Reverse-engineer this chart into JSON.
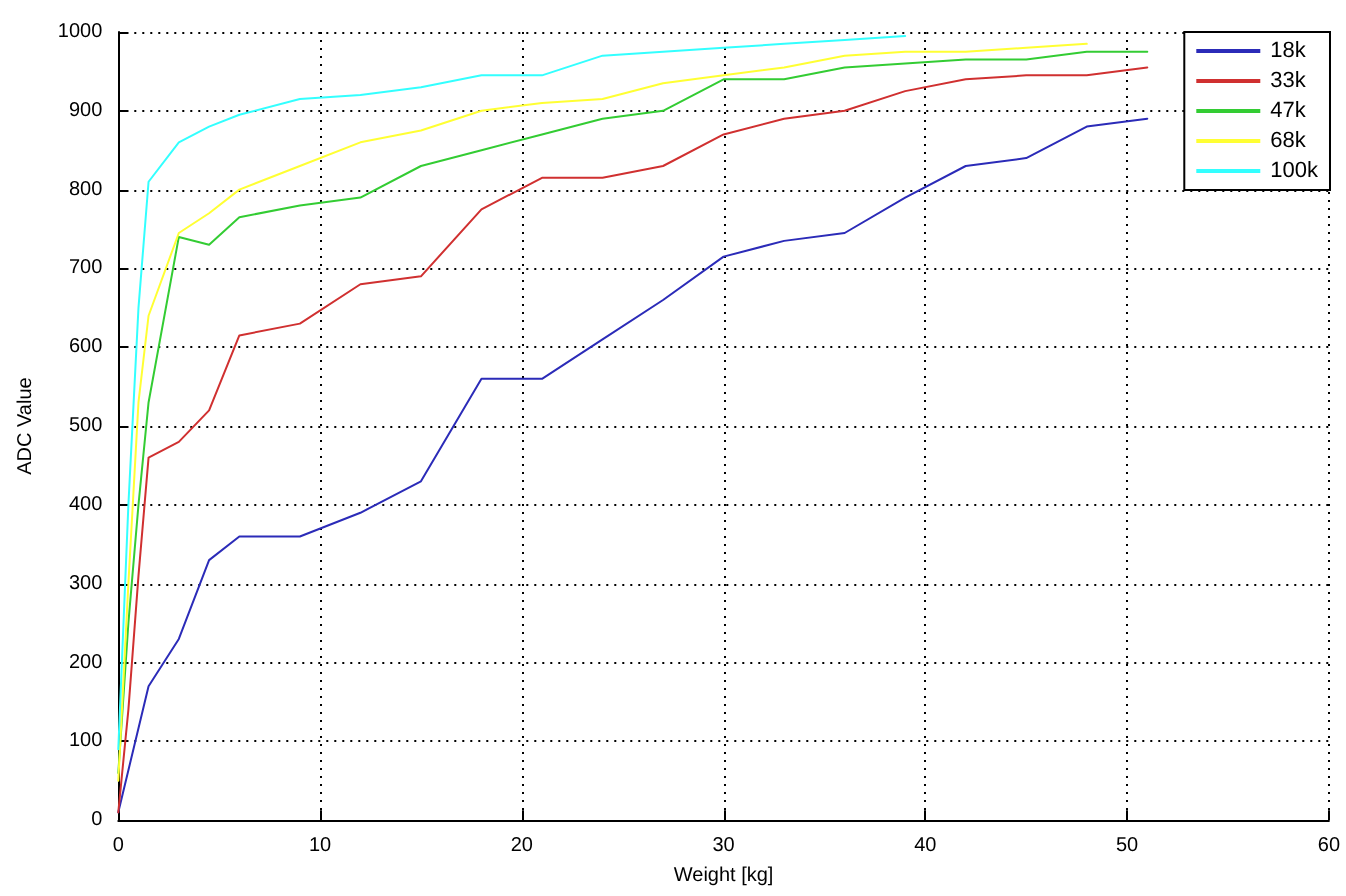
{
  "chart_data": {
    "type": "line",
    "xlabel": "Weight [kg]",
    "ylabel": "ADC Value",
    "xlim": [
      0,
      60
    ],
    "xticks": [
      0,
      10,
      20,
      30,
      40,
      50,
      60
    ],
    "ylim": [
      0,
      1000
    ],
    "yticks": [
      0,
      100,
      200,
      300,
      400,
      500,
      600,
      700,
      800,
      900,
      1000
    ],
    "grid": true,
    "legend": "top right",
    "marker": "none",
    "line_style": "solid",
    "series": [
      {
        "name": "18k",
        "color": "#2b2bb8",
        "x": [
          0,
          1.5,
          3,
          4.5,
          6,
          9,
          12,
          15,
          18,
          21,
          24,
          27,
          30,
          33,
          36,
          39,
          42,
          45,
          48,
          51
        ],
        "values": [
          10,
          170,
          230,
          330,
          360,
          360,
          390,
          430,
          560,
          560,
          610,
          660,
          715,
          735,
          745,
          790,
          830,
          840,
          880,
          890
        ]
      },
      {
        "name": "33k",
        "color": "#d03030",
        "x": [
          0,
          0.5,
          1,
          1.5,
          3,
          4.5,
          6,
          9,
          12,
          15,
          18,
          21,
          24,
          27,
          30,
          33,
          36,
          39,
          42,
          45,
          48,
          51
        ],
        "values": [
          10,
          140,
          310,
          460,
          480,
          520,
          615,
          630,
          680,
          690,
          775,
          815,
          815,
          830,
          870,
          890,
          900,
          925,
          940,
          945,
          945,
          955
        ]
      },
      {
        "name": "47k",
        "color": "#33cc33",
        "x": [
          0,
          0.5,
          1,
          1.5,
          3,
          4.5,
          6,
          9,
          12,
          15,
          18,
          21,
          24,
          27,
          30,
          33,
          36,
          39,
          42,
          45,
          48,
          51
        ],
        "values": [
          60,
          250,
          400,
          530,
          740,
          730,
          765,
          780,
          790,
          830,
          850,
          870,
          890,
          900,
          940,
          940,
          955,
          960,
          965,
          965,
          975,
          975
        ]
      },
      {
        "name": "68k",
        "color": "#ffff33",
        "x": [
          0,
          0.5,
          1,
          1.5,
          3,
          4.5,
          6,
          9,
          12,
          15,
          18,
          21,
          24,
          27,
          30,
          33,
          36,
          39,
          42,
          45,
          48
        ],
        "values": [
          50,
          300,
          530,
          640,
          745,
          770,
          800,
          830,
          860,
          875,
          900,
          910,
          915,
          935,
          945,
          955,
          970,
          975,
          975,
          980,
          985
        ]
      },
      {
        "name": "100k",
        "color": "#33ffff",
        "x": [
          0,
          0.5,
          1,
          1.5,
          3,
          4.5,
          6,
          9,
          12,
          15,
          18,
          21,
          24,
          27,
          30,
          33,
          36,
          39
        ],
        "values": [
          90,
          400,
          650,
          810,
          860,
          880,
          895,
          915,
          920,
          930,
          945,
          945,
          970,
          975,
          980,
          985,
          990,
          995
        ]
      }
    ]
  }
}
